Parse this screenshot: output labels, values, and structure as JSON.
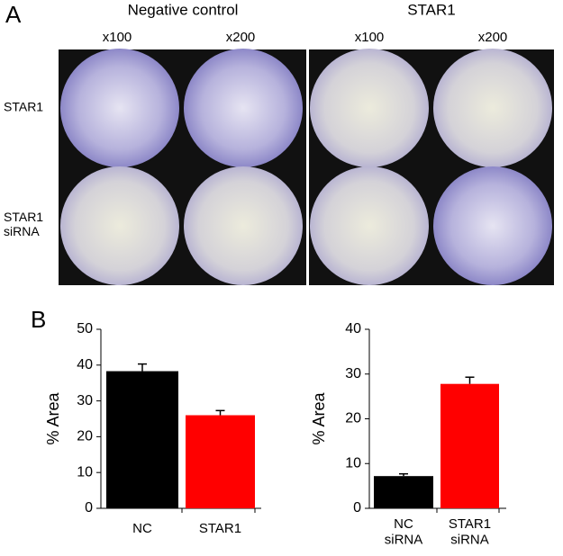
{
  "panel_a": {
    "label": "A",
    "groups": [
      "Negative control",
      "STAR1"
    ],
    "magnifications": [
      "x100",
      "x200",
      "x100",
      "x200"
    ],
    "rows": [
      "STAR1",
      "STAR1\nsiRNA"
    ]
  },
  "panel_b": {
    "label": "B"
  },
  "chart_data": [
    {
      "type": "bar",
      "ylabel": "% Area",
      "categories": [
        "NC",
        "STAR1"
      ],
      "values": [
        38.3,
        26.0
      ],
      "errors": [
        2.0,
        1.3
      ],
      "colors": [
        "#000000",
        "#ff0000"
      ],
      "ylim": [
        0,
        50
      ],
      "yticks": [
        0,
        10,
        20,
        30,
        40,
        50
      ]
    },
    {
      "type": "bar",
      "ylabel": "% Area",
      "categories": [
        "NC\nsiRNA",
        "STAR1\nsiRNA"
      ],
      "values": [
        7.2,
        27.8
      ],
      "errors": [
        0.5,
        1.5
      ],
      "colors": [
        "#000000",
        "#ff0000"
      ],
      "ylim": [
        0,
        40
      ],
      "yticks": [
        0,
        10,
        20,
        30,
        40
      ]
    }
  ]
}
